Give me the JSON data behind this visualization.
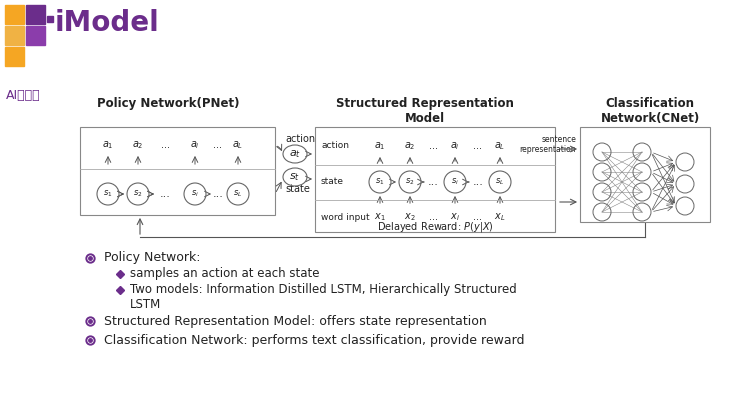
{
  "bg_color": "#ffffff",
  "logo_color_orange": "#F5A623",
  "logo_color_purple": "#6B2D8B",
  "logo_color_light_orange": "#F0B244",
  "logo_color_mid_purple": "#8B3DAB",
  "text_color": "#222222",
  "bullet_color": "#6B2D8B",
  "diamond_color": "#6B2D8B",
  "header1": "Policy Network(PNet)",
  "header2": "Structured Representation\nModel",
  "header3": "Classification\nNetwork(CNet)",
  "bullet1": "Policy Network:",
  "sub1": "samples an action at each state",
  "sub2a": "Two models: Information Distilled LSTM, Hierarchically Structured",
  "sub2b": "LSTM",
  "bullet2": "Structured Representation Model: offers state representation",
  "bullet3": "Classification Network: performs text classification, provide reward",
  "brand": "AI研习社"
}
